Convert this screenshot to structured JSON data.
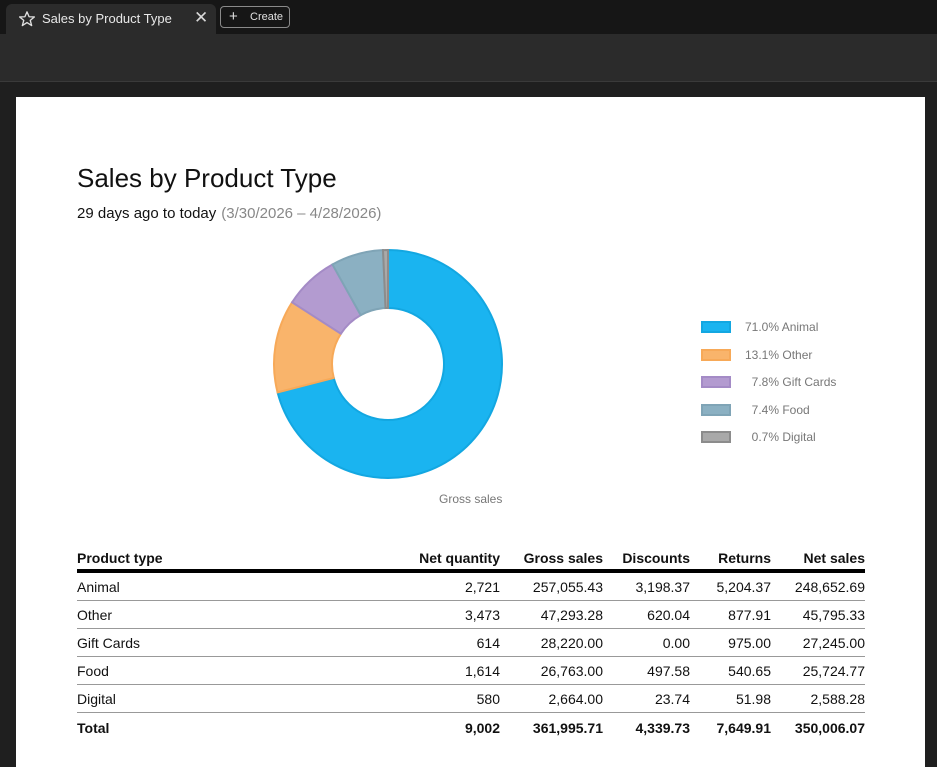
{
  "tab": {
    "title": "Sales by Product Type",
    "close_glyph": "✕",
    "create_label": "Create",
    "create_glyph": "+"
  },
  "report": {
    "title": "Sales by Product Type",
    "range_label": "29 days ago to today",
    "range_dates": "(3/30/2026 – 4/28/2026)"
  },
  "chart_data": {
    "type": "pie",
    "style": "donut",
    "xlabel": "Gross sales",
    "categories": [
      "Animal",
      "Other",
      "Gift Cards",
      "Food",
      "Digital"
    ],
    "values": [
      71.0,
      13.1,
      7.8,
      7.4,
      0.7
    ],
    "colors": [
      "#1ab4f0",
      "#f9b46b",
      "#b39bd0",
      "#8bb0c2",
      "#a9a9a9"
    ],
    "stroke_colors": [
      "#13a7e1",
      "#f7a958",
      "#a48bc6",
      "#7fa4b6",
      "#8c8c8c"
    ],
    "legend": [
      "71.0% Animal",
      "13.1% Other",
      "  7.8% Gift Cards",
      "  7.4% Food",
      "  0.7% Digital"
    ],
    "legend_position": "right"
  },
  "table": {
    "headers": [
      "Product type",
      "Net quantity",
      "Gross sales",
      "Discounts",
      "Returns",
      "Net sales"
    ],
    "rows": [
      [
        "Animal",
        "2,721",
        "257,055.43",
        "3,198.37",
        "5,204.37",
        "248,652.69"
      ],
      [
        "Other",
        "3,473",
        "47,293.28",
        "620.04",
        "877.91",
        "45,795.33"
      ],
      [
        "Gift Cards",
        "614",
        "28,220.00",
        "0.00",
        "975.00",
        "27,245.00"
      ],
      [
        "Food",
        "1,614",
        "26,763.00",
        "497.58",
        "540.65",
        "25,724.77"
      ],
      [
        "Digital",
        "580",
        "2,664.00",
        "23.74",
        "51.98",
        "2,588.28"
      ]
    ],
    "total": [
      "Total",
      "9,002",
      "361,995.71",
      "4,339.73",
      "7,649.91",
      "350,006.07"
    ]
  }
}
